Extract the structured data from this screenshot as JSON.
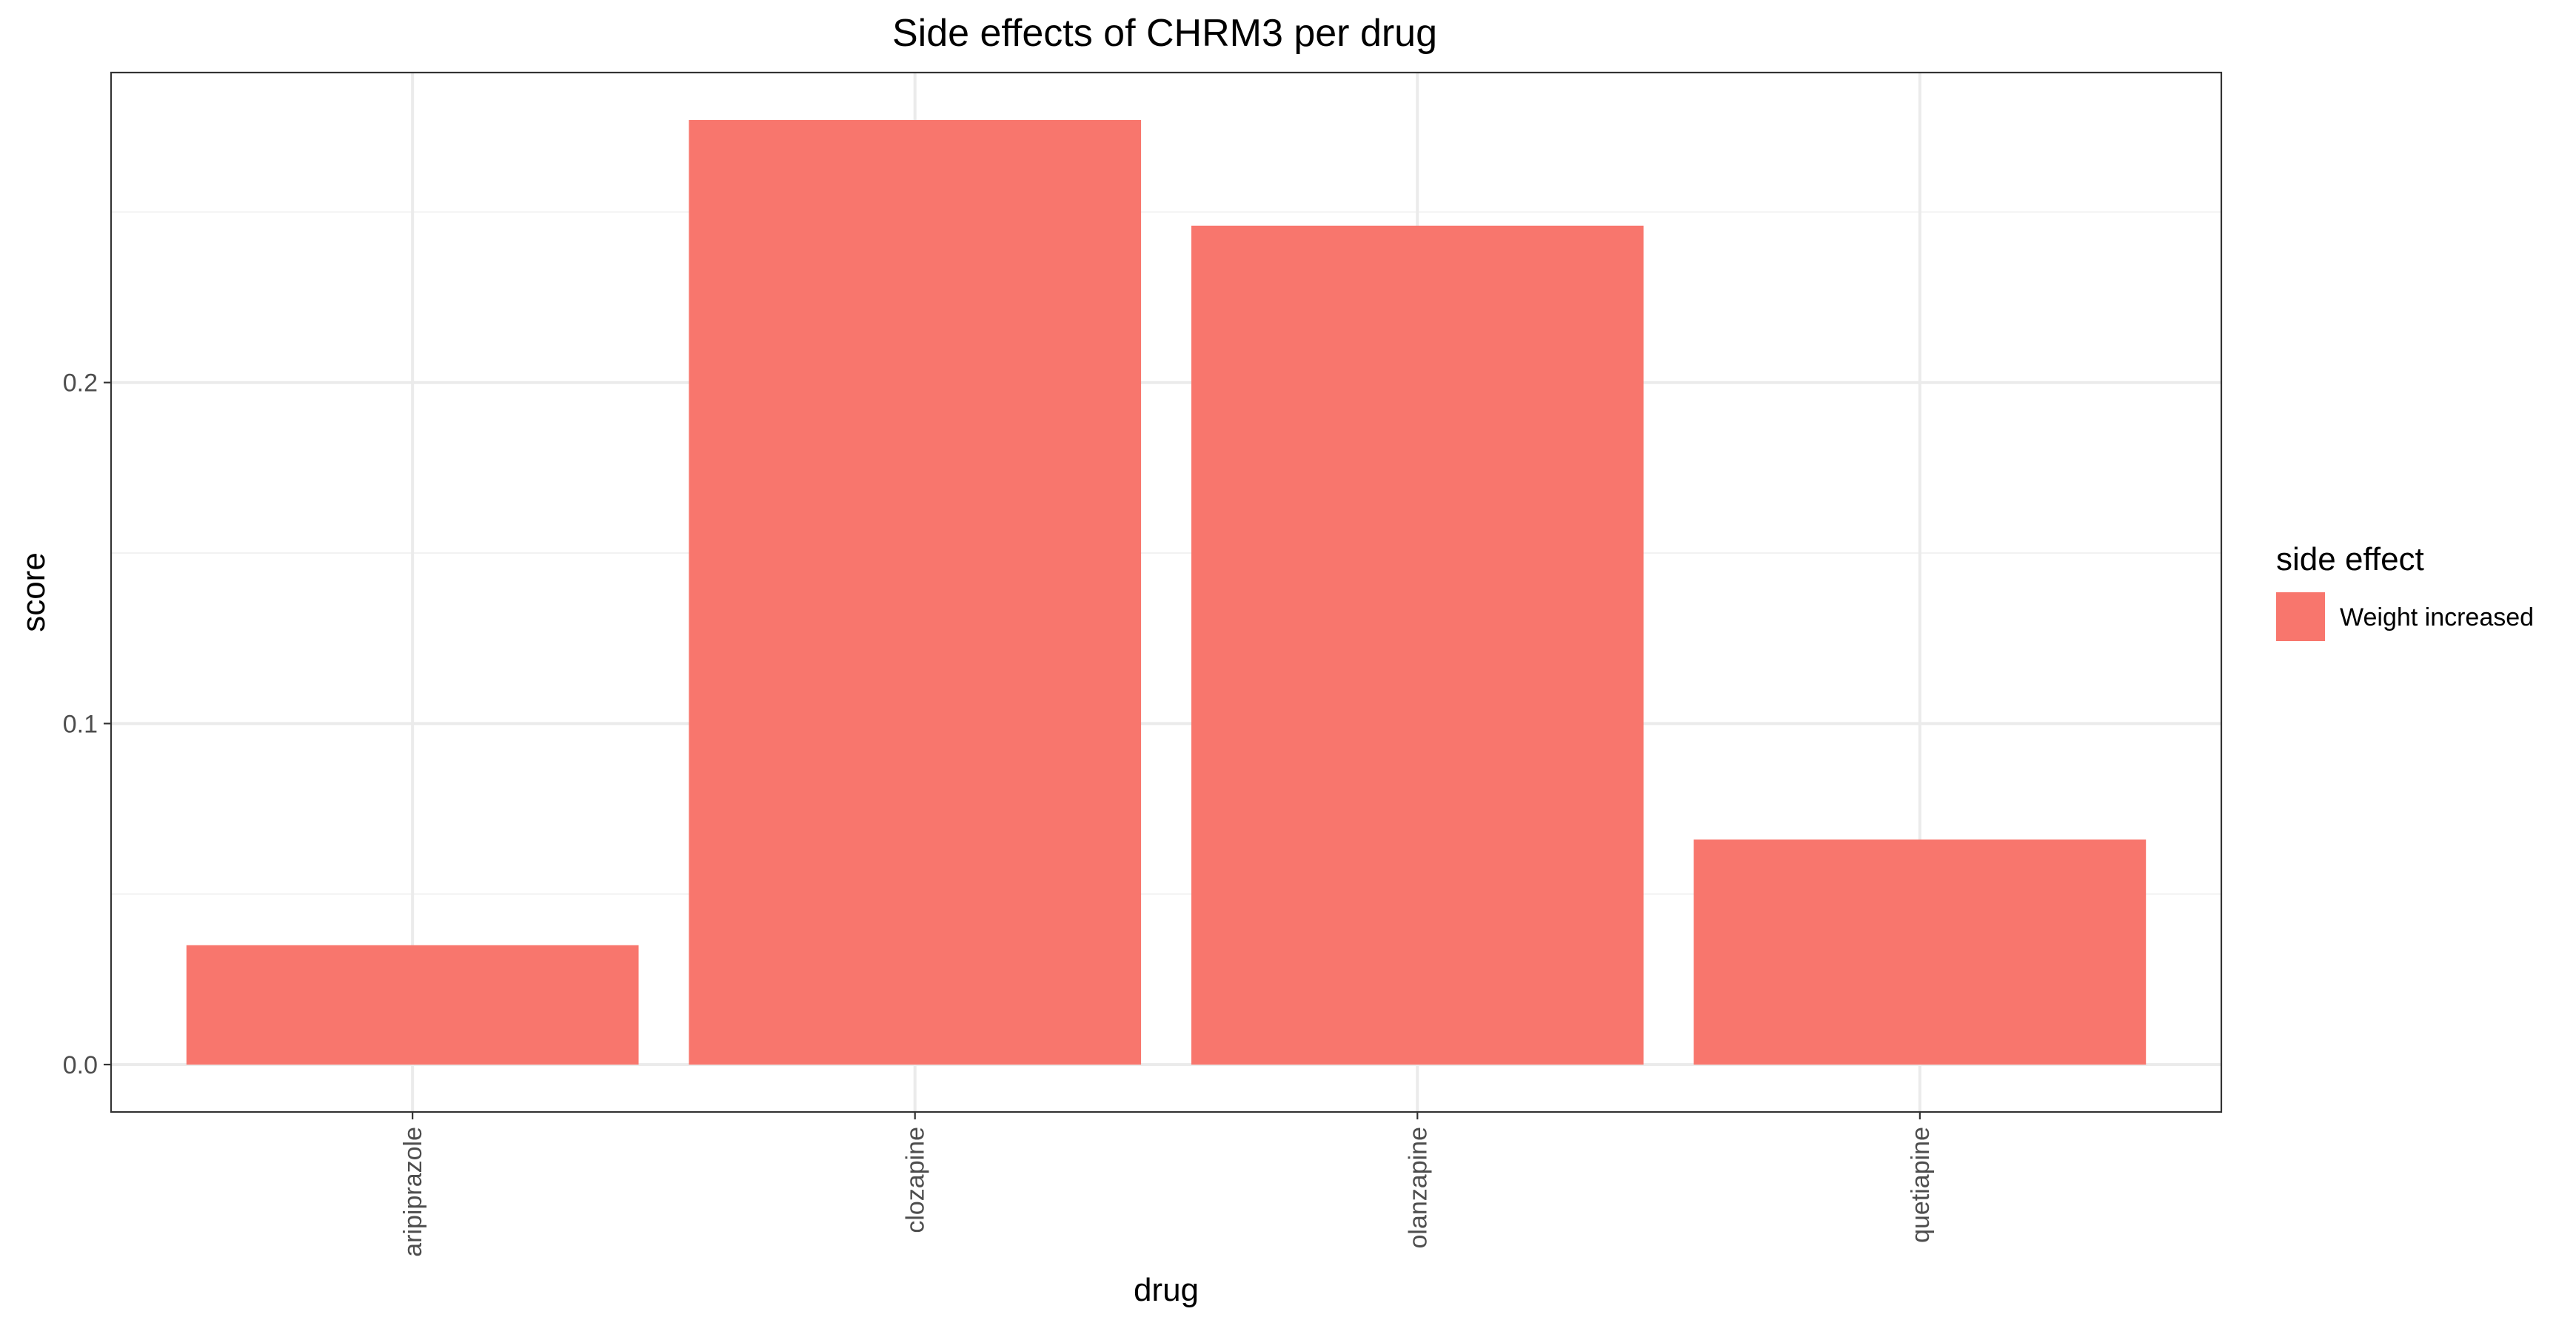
{
  "chart_data": {
    "type": "bar",
    "title": "Side effects of CHRM3 per drug",
    "xlabel": "drug",
    "ylabel": "score",
    "categories": [
      "aripiprazole",
      "clozapine",
      "olanzapine",
      "quetiapine"
    ],
    "series": [
      {
        "name": "Weight increased",
        "values": [
          0.035,
          0.277,
          0.246,
          0.066
        ],
        "color": "#F8766D"
      }
    ],
    "ylim": [
      -0.0139,
      0.2909
    ],
    "y_ticks": [
      0.0,
      0.1,
      0.2
    ],
    "y_tick_labels": [
      "0.0",
      "0.1",
      "0.2"
    ],
    "y_minor_ticks": [
      0.05,
      0.15,
      0.25
    ],
    "grid": true,
    "legend": {
      "title": "side effect",
      "position": "right"
    }
  }
}
